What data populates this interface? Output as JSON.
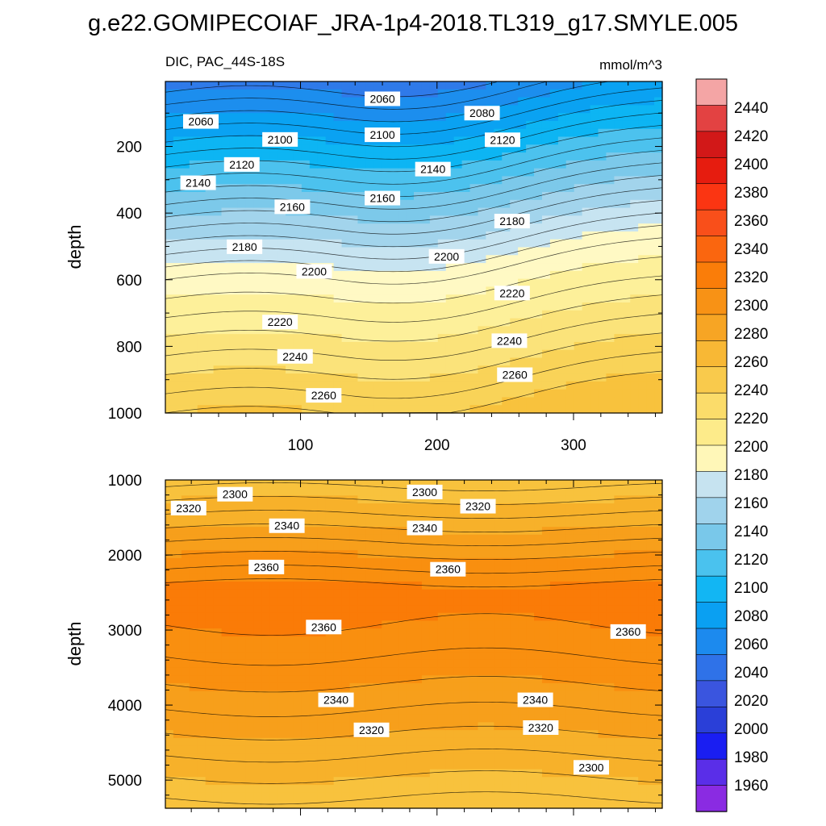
{
  "title": "g.e22.GOMIPECOIAF_JRA-1p4-2018.TL319_g17.SMYLE.005",
  "chart_data": [
    {
      "type": "heatmap",
      "panel": "upper",
      "left_title": "DIC, PAC_44S-18S",
      "right_title": "mmol/m^3",
      "ylabel": "depth",
      "xlabel": "",
      "xlim": [
        1,
        365
      ],
      "ylim": [
        1000,
        5
      ],
      "x_ticks": [
        100,
        200,
        300
      ],
      "y_ticks": [
        200,
        400,
        600,
        800,
        1000
      ],
      "contour_labels": [
        {
          "v": 2060,
          "x": 27,
          "y": 125
        },
        {
          "v": 2060,
          "x": 160,
          "y": 57
        },
        {
          "v": 2080,
          "x": 233,
          "y": 100
        },
        {
          "v": 2100,
          "x": 85,
          "y": 179
        },
        {
          "v": 2100,
          "x": 160,
          "y": 165
        },
        {
          "v": 2120,
          "x": 57,
          "y": 254
        },
        {
          "v": 2120,
          "x": 248,
          "y": 180
        },
        {
          "v": 2140,
          "x": 25,
          "y": 309
        },
        {
          "v": 2140,
          "x": 197,
          "y": 268
        },
        {
          "v": 2160,
          "x": 94,
          "y": 381
        },
        {
          "v": 2160,
          "x": 160,
          "y": 355
        },
        {
          "v": 2180,
          "x": 59,
          "y": 501
        },
        {
          "v": 2180,
          "x": 255,
          "y": 424
        },
        {
          "v": 2200,
          "x": 110,
          "y": 575
        },
        {
          "v": 2200,
          "x": 207,
          "y": 530
        },
        {
          "v": 2220,
          "x": 85,
          "y": 727
        },
        {
          "v": 2220,
          "x": 255,
          "y": 640
        },
        {
          "v": 2240,
          "x": 96,
          "y": 830
        },
        {
          "v": 2240,
          "x": 253,
          "y": 783
        },
        {
          "v": 2260,
          "x": 117,
          "y": 947
        },
        {
          "v": 2260,
          "x": 257,
          "y": 885
        }
      ]
    },
    {
      "type": "heatmap",
      "panel": "lower",
      "ylabel": "depth",
      "xlabel": "",
      "xlim": [
        1,
        365
      ],
      "ylim": [
        5375,
        1000
      ],
      "x_ticks": [
        100,
        200,
        300
      ],
      "y_ticks": [
        1000,
        2000,
        3000,
        4000,
        5000
      ],
      "contour_labels": [
        {
          "v": 2300,
          "x": 52,
          "y": 1190
        },
        {
          "v": 2300,
          "x": 191,
          "y": 1160
        },
        {
          "v": 2320,
          "x": 18,
          "y": 1375
        },
        {
          "v": 2320,
          "x": 230,
          "y": 1350
        },
        {
          "v": 2340,
          "x": 90,
          "y": 1610
        },
        {
          "v": 2340,
          "x": 191,
          "y": 1640
        },
        {
          "v": 2360,
          "x": 75,
          "y": 2160
        },
        {
          "v": 2360,
          "x": 208,
          "y": 2190
        },
        {
          "v": 2360,
          "x": 117,
          "y": 2960
        },
        {
          "v": 2360,
          "x": 340,
          "y": 3020
        },
        {
          "v": 2340,
          "x": 126,
          "y": 3930
        },
        {
          "v": 2340,
          "x": 272,
          "y": 3930
        },
        {
          "v": 2320,
          "x": 152,
          "y": 4330
        },
        {
          "v": 2320,
          "x": 276,
          "y": 4300
        },
        {
          "v": 2300,
          "x": 313,
          "y": 4830
        }
      ]
    }
  ],
  "colorbar": {
    "labels": [
      "2440",
      "2420",
      "2400",
      "2380",
      "2360",
      "2340",
      "2320",
      "2300",
      "2280",
      "2260",
      "2240",
      "2220",
      "2200",
      "2180",
      "2160",
      "2140",
      "2120",
      "2100",
      "2080",
      "2060",
      "2040",
      "2020",
      "2000",
      "1980",
      "1960"
    ],
    "levels": [
      1960,
      1980,
      2000,
      2020,
      2040,
      2060,
      2080,
      2100,
      2120,
      2140,
      2160,
      2180,
      2200,
      2220,
      2240,
      2260,
      2280,
      2300,
      2320,
      2340,
      2360,
      2380,
      2400,
      2420,
      2440
    ],
    "colors": [
      "#8c28e6",
      "#6428f0",
      "#2828f5",
      "#0a1ef5",
      "#1e41f0",
      "#3758e6",
      "#2e6ff0",
      "#2583f0",
      "#1e96f0",
      "#0aa6f5",
      "#00b9f5",
      "#2dc1f0",
      "#58c6eb",
      "#8ccde8",
      "#a7d7ee",
      "#c5e3f0",
      "#fff7b5",
      "#fdef8e",
      "#fbe368",
      "#fad44a",
      "#f8c53a",
      "#f8b72c",
      "#f8a81e",
      "#f89a10",
      "#f98c06",
      "#fa7a00",
      "#f96510",
      "#f9521b",
      "#f94222",
      "#fb3414",
      "#f21e0a",
      "#ea100a",
      "#d80d0d",
      "#cc2020",
      "#e03030",
      "#ef6c6c",
      "#fcb7b7"
    ],
    "color_top_index_map": "bottom-to-top"
  }
}
